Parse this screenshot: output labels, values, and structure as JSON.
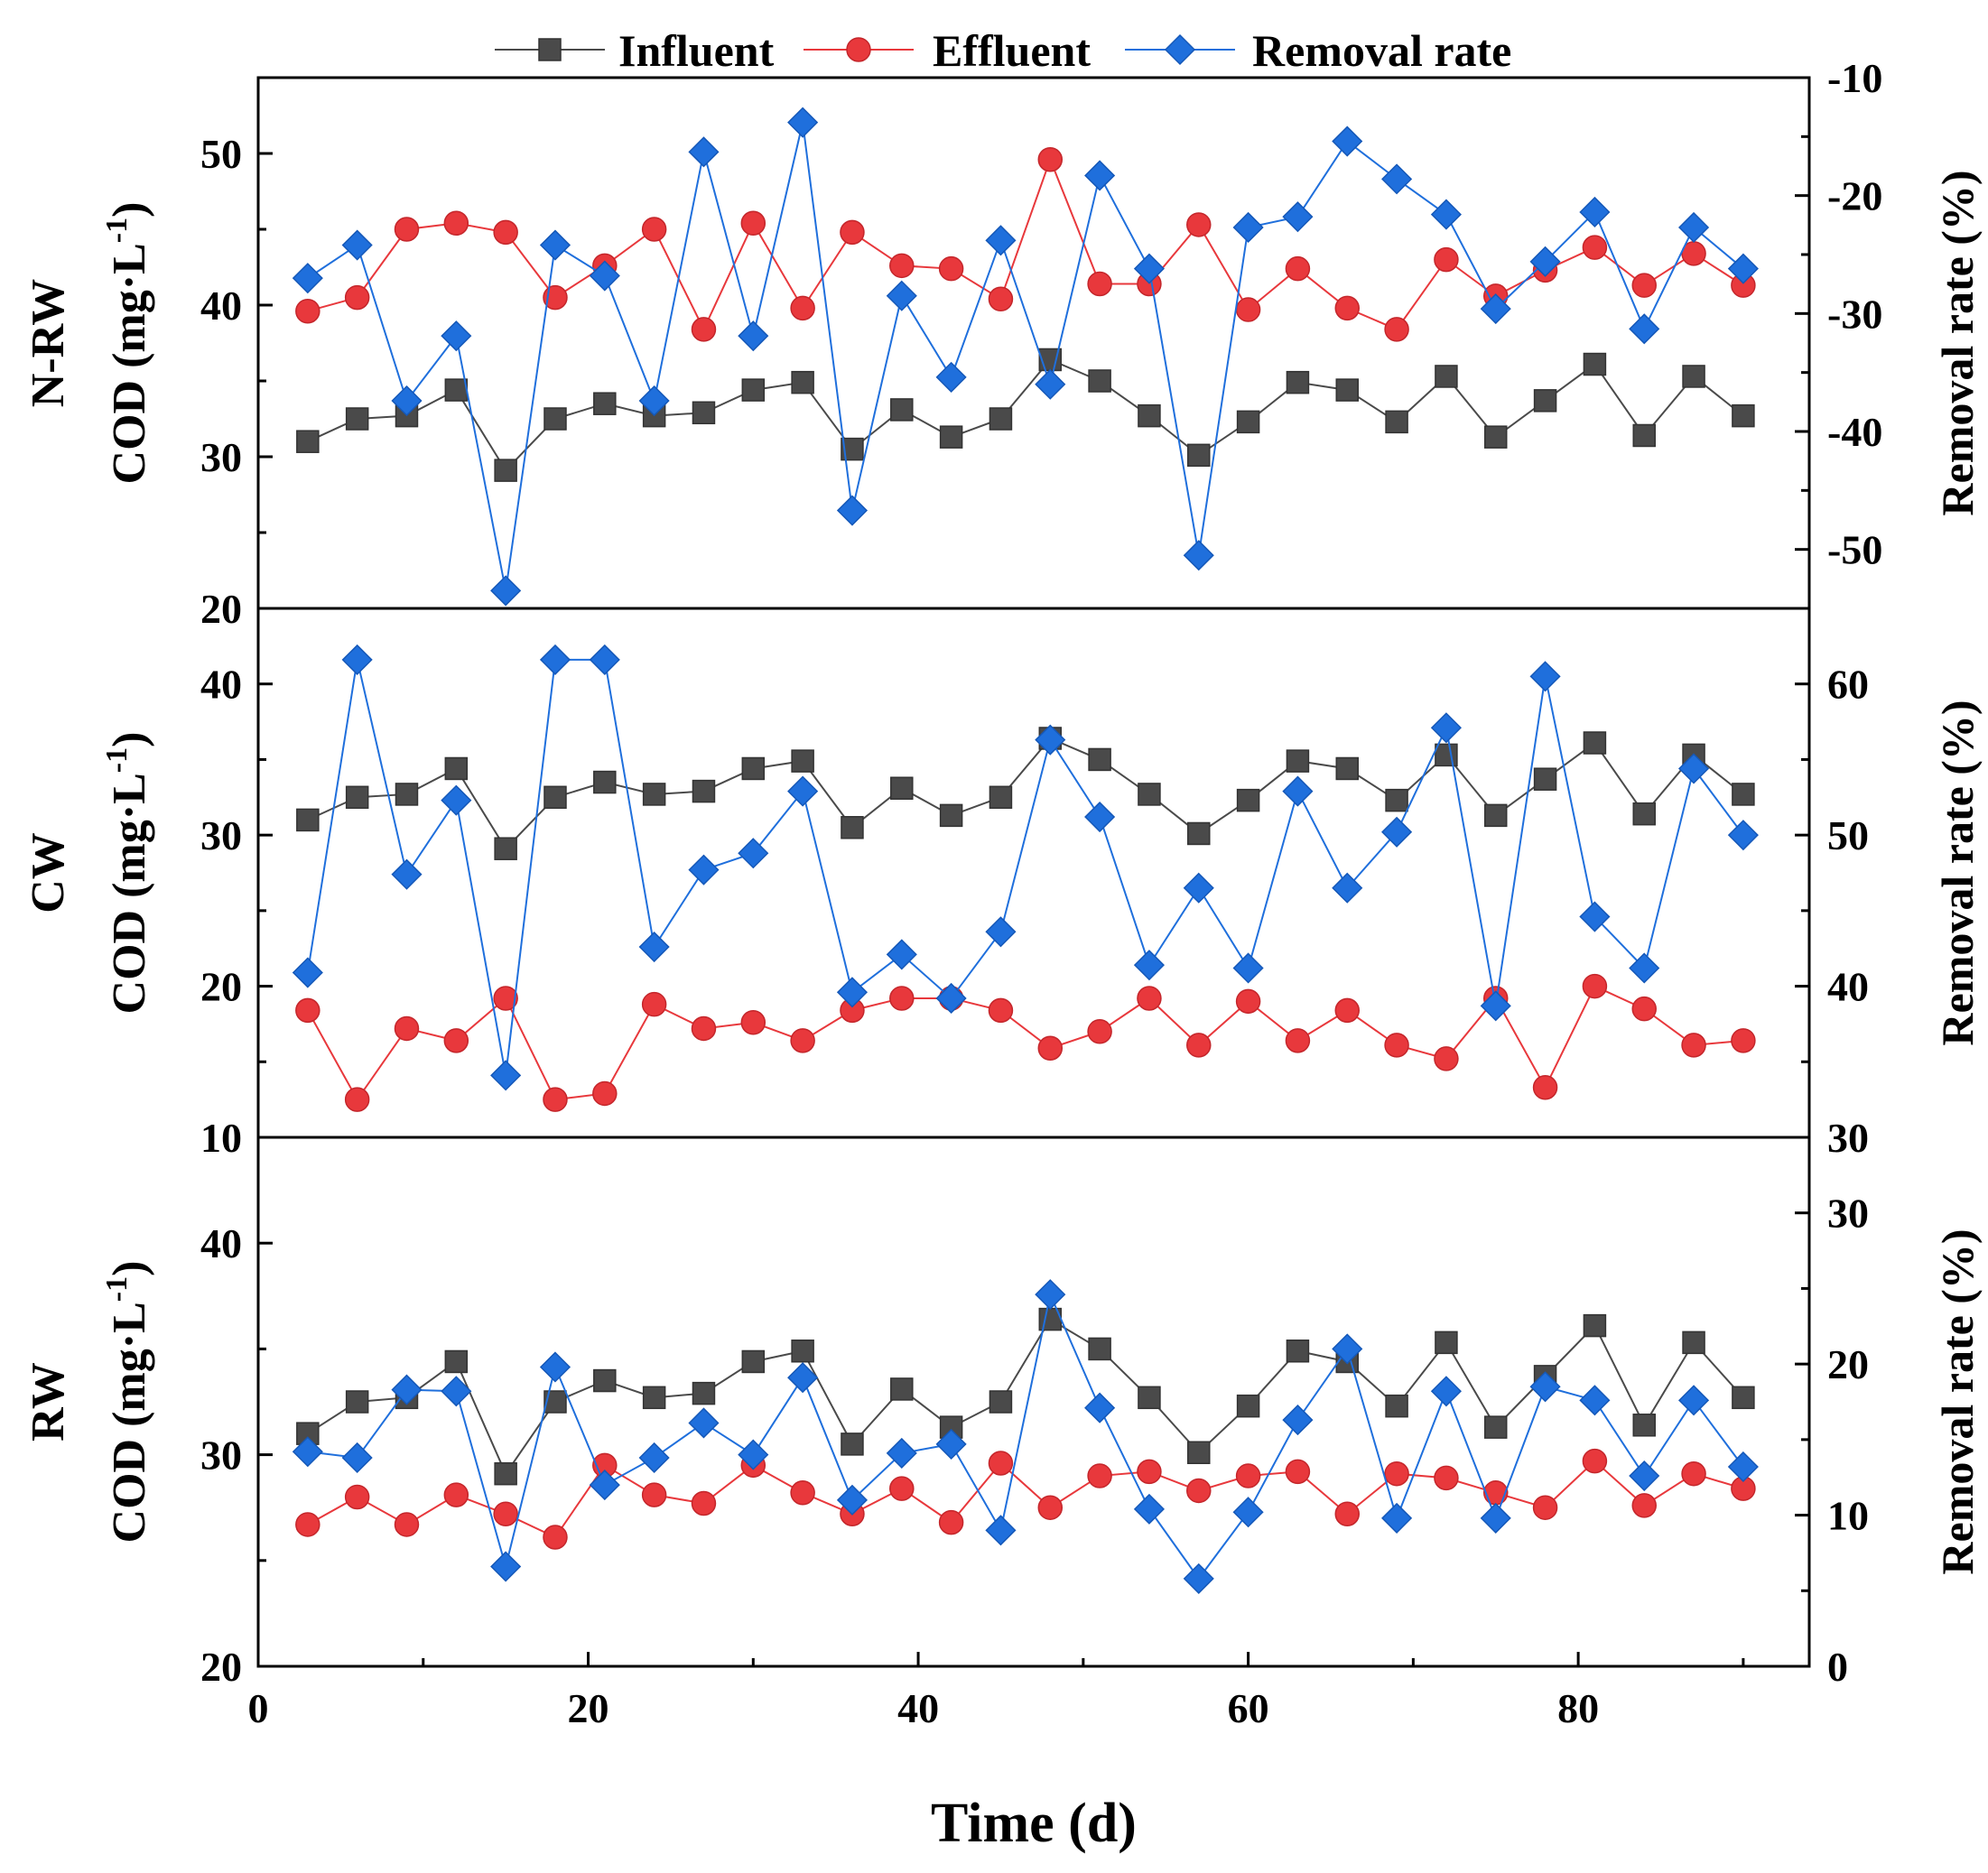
{
  "chart_data": {
    "type": "line",
    "xlabel": "Time (d)",
    "x_ticks": [
      0,
      20,
      40,
      60,
      80
    ],
    "xlim": [
      0,
      94
    ],
    "legend": {
      "placement": "top-center",
      "entries": [
        {
          "key": "influent",
          "label": "Influent",
          "color": "#4a4a4a",
          "marker": "square"
        },
        {
          "key": "effluent",
          "label": "Effluent",
          "color": "#e8383c",
          "marker": "circle"
        },
        {
          "key": "removal",
          "label": "Removal rate",
          "color": "#1f6fdc",
          "marker": "diamond"
        }
      ]
    },
    "days": [
      3,
      6,
      9,
      12,
      15,
      18,
      21,
      24,
      27,
      30,
      33,
      36,
      39,
      42,
      45,
      48,
      51,
      54,
      57,
      60,
      63,
      66,
      69,
      72,
      75,
      78,
      81,
      84,
      87,
      90
    ],
    "panels": [
      {
        "name": "N-RW",
        "ylabel": "COD (mg·L",
        "ylabel_sup": "-1",
        "ylabel_end": ")",
        "ylim": [
          20,
          55
        ],
        "y_ticks": [
          20,
          30,
          40,
          50
        ],
        "y2label": "Removal rate (%)",
        "y2lim": [
          -55,
          -10
        ],
        "y2_ticks": [
          -50,
          -40,
          -30,
          -20,
          -10
        ],
        "influent": [
          31.0,
          32.5,
          32.7,
          34.4,
          29.1,
          32.5,
          33.5,
          32.7,
          32.9,
          34.4,
          34.9,
          30.5,
          33.1,
          31.3,
          32.5,
          36.4,
          35.0,
          32.7,
          30.1,
          32.3,
          34.9,
          34.4,
          32.3,
          35.3,
          31.3,
          33.7,
          36.1,
          31.4,
          35.3,
          32.7
        ],
        "effluent": [
          39.6,
          40.5,
          45.0,
          45.4,
          44.8,
          40.5,
          42.6,
          45.0,
          38.4,
          45.4,
          39.8,
          44.8,
          42.6,
          42.4,
          40.4,
          49.6,
          41.4,
          41.4,
          45.3,
          39.7,
          42.4,
          39.8,
          38.4,
          43.0,
          40.6,
          42.3,
          43.8,
          41.3,
          43.4,
          41.3
        ],
        "removal": [
          -27.0,
          -24.2,
          -37.4,
          -31.9,
          -53.5,
          -24.2,
          -26.8,
          -37.4,
          -16.3,
          -31.9,
          -13.8,
          -46.7,
          -28.5,
          -35.4,
          -23.8,
          -36.0,
          -18.3,
          -26.2,
          -50.5,
          -22.7,
          -21.8,
          -15.4,
          -18.6,
          -21.6,
          -29.6,
          -25.6,
          -21.4,
          -31.3,
          -22.7,
          -26.2
        ]
      },
      {
        "name": "CW",
        "ylabel": "COD (mg·L",
        "ylabel_sup": "-1",
        "ylabel_end": ")",
        "ylim": [
          10,
          45
        ],
        "y_ticks": [
          10,
          20,
          30,
          40
        ],
        "y2label": "Removal rate (%)",
        "y2lim": [
          30,
          65
        ],
        "y2_ticks": [
          30,
          40,
          50,
          60
        ],
        "influent": [
          31.0,
          32.5,
          32.7,
          34.4,
          29.1,
          32.5,
          33.5,
          32.7,
          32.9,
          34.4,
          34.9,
          30.5,
          33.1,
          31.3,
          32.5,
          36.4,
          35.0,
          32.7,
          30.1,
          32.3,
          34.9,
          34.4,
          32.3,
          35.3,
          31.3,
          33.7,
          36.1,
          31.4,
          35.3,
          32.7
        ],
        "effluent": [
          18.4,
          12.5,
          17.2,
          16.4,
          19.2,
          12.5,
          12.9,
          18.8,
          17.2,
          17.6,
          16.4,
          18.4,
          19.2,
          19.2,
          18.4,
          15.9,
          17.0,
          19.2,
          16.1,
          19.0,
          16.4,
          18.4,
          16.1,
          15.2,
          19.2,
          13.3,
          20.0,
          18.5,
          16.1,
          16.4
        ],
        "removal": [
          40.9,
          61.6,
          47.4,
          52.3,
          34.1,
          61.6,
          61.6,
          42.6,
          47.7,
          48.8,
          52.9,
          39.6,
          42.1,
          39.2,
          43.6,
          56.3,
          51.2,
          41.4,
          46.5,
          41.2,
          52.9,
          46.5,
          50.2,
          57.1,
          38.7,
          60.5,
          44.6,
          41.2,
          54.4,
          50.0
        ]
      },
      {
        "name": "RW",
        "ylabel": "COD (mg·L",
        "ylabel_sup": "-1",
        "ylabel_end": ")",
        "ylim": [
          20,
          45
        ],
        "y_ticks": [
          20,
          30,
          40
        ],
        "y2label": "Removal rate (%)",
        "y2lim": [
          0,
          35
        ],
        "y2_ticks": [
          0,
          10,
          20,
          30
        ],
        "influent": [
          31.0,
          32.5,
          32.7,
          34.4,
          29.1,
          32.5,
          33.5,
          32.7,
          32.9,
          34.4,
          34.9,
          30.5,
          33.1,
          31.3,
          32.5,
          36.4,
          35.0,
          32.7,
          30.1,
          32.3,
          34.9,
          34.4,
          32.3,
          35.3,
          31.3,
          33.7,
          36.1,
          31.4,
          35.3,
          32.7
        ],
        "effluent": [
          26.7,
          28.0,
          26.7,
          28.1,
          27.2,
          26.1,
          29.5,
          28.1,
          27.7,
          29.5,
          28.2,
          27.2,
          28.4,
          26.8,
          29.6,
          27.5,
          29.0,
          29.2,
          28.3,
          29.0,
          29.2,
          27.2,
          29.1,
          28.9,
          28.2,
          27.5,
          29.7,
          27.6,
          29.1,
          28.4
        ],
        "removal": [
          14.2,
          13.8,
          18.3,
          18.2,
          6.6,
          19.8,
          12.0,
          13.8,
          16.1,
          14.0,
          19.1,
          11.0,
          14.1,
          14.7,
          9.0,
          24.6,
          17.1,
          10.4,
          5.8,
          10.2,
          16.3,
          21.0,
          9.8,
          18.2,
          9.8,
          18.5,
          17.6,
          12.6,
          17.6,
          13.2
        ]
      }
    ]
  }
}
